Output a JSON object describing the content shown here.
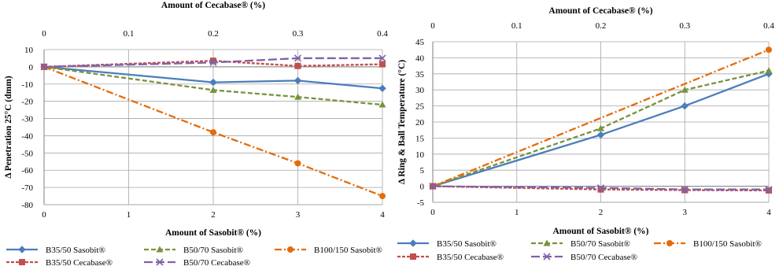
{
  "chart_data": [
    {
      "type": "line",
      "xlabel": "Amount of Sasobit® (%)",
      "x2label": "Amount of Cecabase® (%)",
      "ylabel": "Δ Penetration 25°C (dmm)",
      "x_sasobit_ticks": [
        "0",
        "1",
        "2",
        "3",
        "4"
      ],
      "x_cecabase_ticks": [
        "0",
        "0.1",
        "0.2",
        "0.3",
        "0.4"
      ],
      "y_ticks": [
        "10",
        "0",
        "-10",
        "-20",
        "-30",
        "-40",
        "-50",
        "-60",
        "-70",
        "-80"
      ],
      "xlim": [
        0,
        4
      ],
      "ylim": [
        -80,
        10
      ],
      "grid": true,
      "legend_placement": "bottom",
      "series": [
        {
          "name": "B35/50 Sasobit®",
          "axis": "sasobit",
          "x": [
            0,
            2,
            3,
            4
          ],
          "values": [
            0,
            -9,
            -8,
            -12.5
          ],
          "color": "#4a7ebb",
          "dash": "solid",
          "marker": "diamond"
        },
        {
          "name": "B50/70 Sasobit®",
          "axis": "sasobit",
          "x": [
            0,
            2,
            3,
            4
          ],
          "values": [
            0,
            -13.5,
            -17.5,
            -22
          ],
          "color": "#77933c",
          "dash": "dash",
          "marker": "triangle"
        },
        {
          "name": "B100/150 Sasobit®",
          "axis": "sasobit",
          "x": [
            0,
            2,
            3,
            4
          ],
          "values": [
            0,
            -38,
            -56,
            -75
          ],
          "color": "#e46c0a",
          "dash": "dashdot",
          "marker": "circle"
        },
        {
          "name": "B35/50 Cecabase®",
          "axis": "cecabase",
          "x": [
            0,
            0.2,
            0.3,
            0.4
          ],
          "values": [
            0,
            3.5,
            0.5,
            1.5
          ],
          "color": "#c0504d",
          "dash": "sdash",
          "marker": "square"
        },
        {
          "name": "B50/70 Cecabase®",
          "axis": "cecabase",
          "x": [
            0,
            0.2,
            0.3,
            0.4
          ],
          "values": [
            0,
            2.5,
            5,
            5
          ],
          "color": "#7f63a8",
          "dash": "longdash",
          "marker": "x"
        }
      ]
    },
    {
      "type": "line",
      "xlabel": "Amount of Sasobit® (%)",
      "x2label": "Amount of Cecabase® (%)",
      "ylabel": "Δ Ring & Ball Temperature (°C)",
      "x_sasobit_ticks": [
        "0",
        "1",
        "2",
        "3",
        "4"
      ],
      "x_cecabase_ticks": [
        "0",
        "0.1",
        "0.2",
        "0.3",
        "0.4"
      ],
      "y_ticks": [
        "45",
        "40",
        "35",
        "30",
        "25",
        "20",
        "15",
        "10",
        "5",
        "0",
        "-5"
      ],
      "xlim": [
        0,
        4
      ],
      "ylim": [
        -5,
        45
      ],
      "grid": true,
      "legend_placement": "bottom",
      "series": [
        {
          "name": "B35/50 Sasobit®",
          "axis": "sasobit",
          "x": [
            0,
            2,
            3,
            4
          ],
          "values": [
            0,
            16,
            25,
            35
          ],
          "color": "#4a7ebb",
          "dash": "solid",
          "marker": "diamond"
        },
        {
          "name": "B50/70 Sasobit®",
          "axis": "sasobit",
          "x": [
            0,
            2,
            3,
            4
          ],
          "values": [
            0,
            18,
            30,
            36
          ],
          "color": "#77933c",
          "dash": "dash",
          "marker": "triangle"
        },
        {
          "name": "B100/150 Sasobit®",
          "axis": "sasobit",
          "x": [
            0,
            4
          ],
          "values": [
            0,
            42.5
          ],
          "color": "#e46c0a",
          "dash": "dashdot",
          "marker": "circle"
        },
        {
          "name": "B35/50 Cecabase®",
          "axis": "cecabase",
          "x": [
            0,
            0.2,
            0.3,
            0.4
          ],
          "values": [
            0,
            -1,
            -1.2,
            -1.3
          ],
          "color": "#c0504d",
          "dash": "sdash",
          "marker": "square"
        },
        {
          "name": "B50/70 Cecabase®",
          "axis": "cecabase",
          "x": [
            0,
            0.2,
            0.3,
            0.4
          ],
          "values": [
            0,
            -0.5,
            -1,
            -1
          ],
          "color": "#7f63a8",
          "dash": "longdash",
          "marker": "x"
        }
      ]
    }
  ]
}
